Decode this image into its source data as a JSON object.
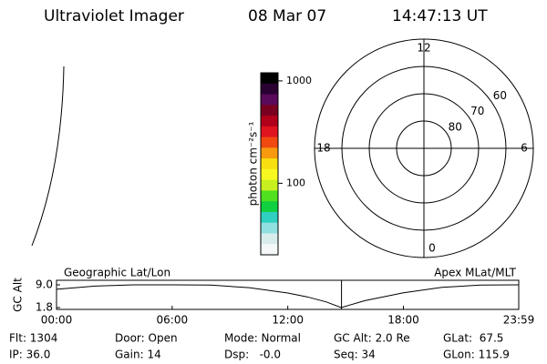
{
  "header": {
    "instrument": "Ultraviolet Imager",
    "date": "08 Mar 07",
    "time": "14:47:13 UT"
  },
  "colorbar": {
    "label": "photon cm⁻²s⁻¹",
    "log": true,
    "lim": [
      20,
      1200
    ],
    "ticks": [
      100,
      1000
    ],
    "colors": [
      "#000000",
      "#2a0033",
      "#5a0a5a",
      "#7a0020",
      "#b0001a",
      "#e0141e",
      "#f04a10",
      "#f89a10",
      "#f8e010",
      "#f8f820",
      "#c8f020",
      "#50e020",
      "#10d040",
      "#30d0c0",
      "#90e0e0",
      "#d8ecec",
      "#f4f8f8"
    ]
  },
  "polar": {
    "lat_lim": [
      90,
      50
    ],
    "rings": [
      60,
      70,
      80
    ],
    "mlt_ticks": [
      12,
      18,
      6,
      0
    ]
  },
  "timeline": {
    "title_left": "Geographic Lat/Lon",
    "title_right": "Apex MLat/MLT",
    "ylabel": "GC Alt",
    "ylim": [
      1.8,
      9.0
    ],
    "yticks": [
      {
        "value": 9.0,
        "label": "9.0"
      },
      {
        "value": 1.8,
        "label": "1.8"
      }
    ],
    "xlim": [
      0,
      23.983
    ],
    "xticks": [
      {
        "value": 0,
        "label": "00:00"
      },
      {
        "value": 6,
        "label": "06:00"
      },
      {
        "value": 12,
        "label": "12:00"
      },
      {
        "value": 18,
        "label": "18:00"
      },
      {
        "value": 23.983,
        "label": "23:59"
      }
    ],
    "x": [
      0,
      2,
      4,
      6,
      8,
      10,
      12,
      13,
      14,
      14.77,
      16,
      18,
      20,
      22,
      23.983
    ],
    "values": [
      7.6,
      8.6,
      9.0,
      9.0,
      8.9,
      8.1,
      6.4,
      5.2,
      3.6,
      1.8,
      4.0,
      6.5,
      8.2,
      8.9,
      9.0
    ],
    "current": 14.787,
    "current_color": "#e00000"
  },
  "footer": [
    [
      "Flt: 1304",
      "Door: Open",
      "Mode: Normal",
      "GC Alt: 2.0 Re",
      "GLat:  67.5"
    ],
    [
      "IP: 36.0",
      "Gain: 14",
      "Dsp:   -0.0",
      "Seq: 34",
      "GLon: 115.9"
    ]
  ]
}
